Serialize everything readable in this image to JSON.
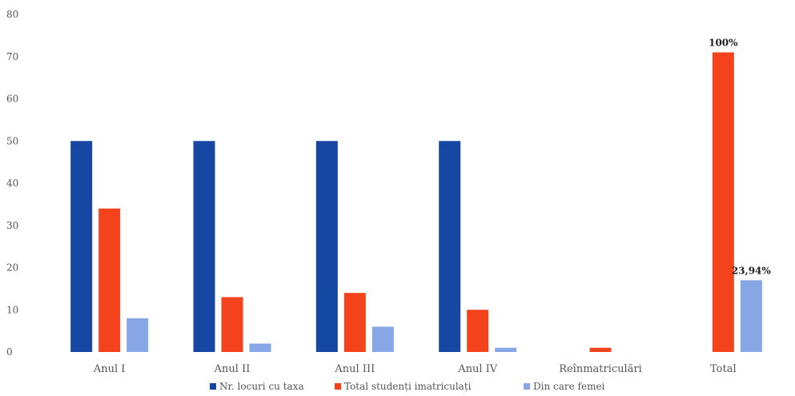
{
  "chart_data": {
    "type": "bar",
    "categories": [
      "Anul I",
      "Anul II",
      "Anul III",
      "Anul IV",
      "Reînmatriculări",
      "Total"
    ],
    "series": [
      {
        "name": "Nr. locuri cu taxa",
        "color": "#1547a3",
        "values": [
          50,
          50,
          50,
          50,
          null,
          null
        ]
      },
      {
        "name": "Total studenți imatriculați",
        "color": "#f4421c",
        "values": [
          34,
          13,
          14,
          10,
          1,
          71
        ]
      },
      {
        "name": "Din care femei",
        "color": "#86a6e6",
        "values": [
          8,
          2,
          6,
          1,
          null,
          17
        ]
      }
    ],
    "ylim": [
      0,
      80
    ],
    "yticks": [
      0,
      10,
      20,
      30,
      40,
      50,
      60,
      70,
      80
    ],
    "data_labels": [
      {
        "series": 1,
        "category": 5,
        "text": "100%"
      },
      {
        "series": 2,
        "category": 5,
        "text": "23,94%"
      }
    ],
    "grid": false,
    "legend": "bottom"
  }
}
